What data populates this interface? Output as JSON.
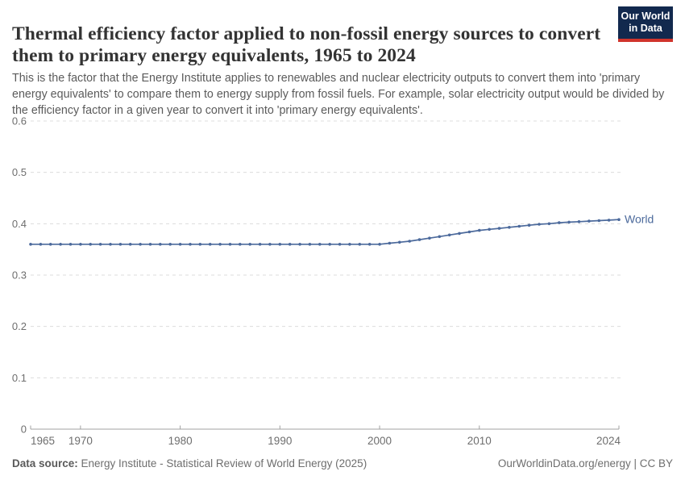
{
  "header": {
    "title": "Thermal efficiency factor applied to non-fossil energy sources to convert them to primary energy equivalents, 1965 to 2024",
    "subtitle": "This is the factor that the Energy Institute applies to renewables and nuclear electricity outputs to convert them into 'primary energy equivalents' to compare them to energy supply from fossil fuels. For example, solar electricity output would be divided by the efficiency factor in a given year to convert it into 'primary energy equivalents'.",
    "logo": {
      "line1": "Our World",
      "line2": "in Data",
      "bg_color": "#12294e",
      "bar_color": "#d0342c"
    }
  },
  "chart_data": {
    "type": "line",
    "title": "Thermal efficiency factor applied to non-fossil energy sources to convert them to primary energy equivalents",
    "xlabel": "",
    "ylabel": "",
    "xlim": [
      1965,
      2024
    ],
    "ylim": [
      0,
      0.6
    ],
    "x_ticks": [
      1965,
      1970,
      1980,
      1990,
      2000,
      2010,
      2024
    ],
    "y_ticks": [
      0,
      0.1,
      0.2,
      0.3,
      0.4,
      0.5,
      0.6
    ],
    "grid": "horizontal-dashed",
    "legend": "line-end-label",
    "x": [
      1965,
      1966,
      1967,
      1968,
      1969,
      1970,
      1971,
      1972,
      1973,
      1974,
      1975,
      1976,
      1977,
      1978,
      1979,
      1980,
      1981,
      1982,
      1983,
      1984,
      1985,
      1986,
      1987,
      1988,
      1989,
      1990,
      1991,
      1992,
      1993,
      1994,
      1995,
      1996,
      1997,
      1998,
      1999,
      2000,
      2001,
      2002,
      2003,
      2004,
      2005,
      2006,
      2007,
      2008,
      2009,
      2010,
      2011,
      2012,
      2013,
      2014,
      2015,
      2016,
      2017,
      2018,
      2019,
      2020,
      2021,
      2022,
      2023,
      2024
    ],
    "series": [
      {
        "name": "World",
        "color": "#4c6a9c",
        "values": [
          0.36,
          0.36,
          0.36,
          0.36,
          0.36,
          0.36,
          0.36,
          0.36,
          0.36,
          0.36,
          0.36,
          0.36,
          0.36,
          0.36,
          0.36,
          0.36,
          0.36,
          0.36,
          0.36,
          0.36,
          0.36,
          0.36,
          0.36,
          0.36,
          0.36,
          0.36,
          0.36,
          0.36,
          0.36,
          0.36,
          0.36,
          0.36,
          0.36,
          0.36,
          0.36,
          0.36,
          0.362,
          0.364,
          0.366,
          0.369,
          0.372,
          0.375,
          0.378,
          0.381,
          0.384,
          0.387,
          0.389,
          0.391,
          0.393,
          0.395,
          0.397,
          0.399,
          0.4,
          0.402,
          0.403,
          0.404,
          0.405,
          0.406,
          0.407,
          0.408
        ]
      }
    ],
    "axis_color": "#a1a1a1",
    "gridline_color": "#dcdcdc",
    "tick_label_color": "#6e6e6e"
  },
  "footer": {
    "source_label": "Data source:",
    "source_text": " Energy Institute - Statistical Review of World Energy (2025)",
    "attribution": "OurWorldinData.org/energy | CC BY"
  }
}
